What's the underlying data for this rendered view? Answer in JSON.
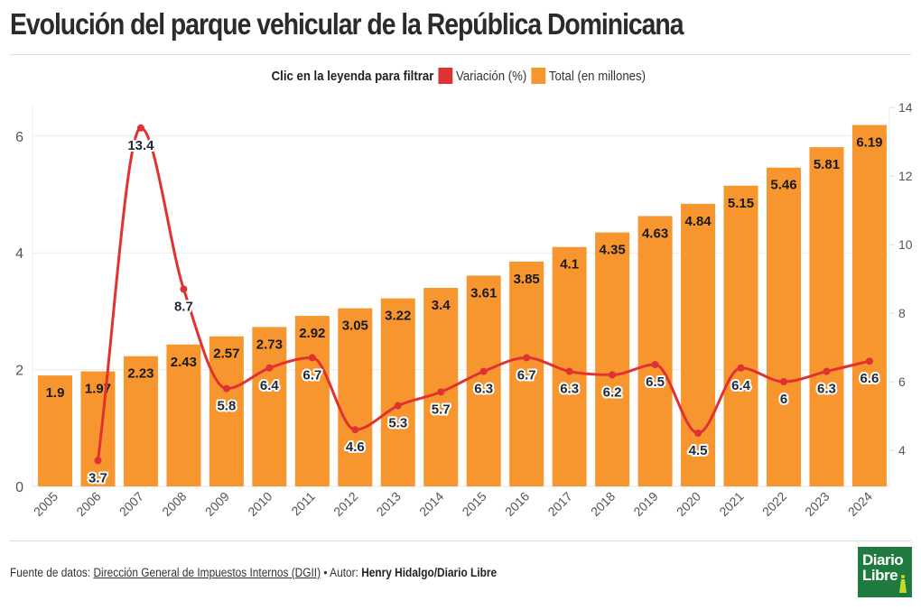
{
  "title": "Evolución del parque vehicular de la República Dominicana",
  "legend": {
    "hint": "Clic en la leyenda para filtrar",
    "items": [
      {
        "label": "Variación (%)",
        "color": "#e03232"
      },
      {
        "label": "Total (en millones)",
        "color": "#f7962e"
      }
    ]
  },
  "footer": {
    "source_prefix": "Fuente de datos:",
    "source_link": "Dirección General de Impuestos Internos (DGII)",
    "separator": "•",
    "author_prefix": "Autor:",
    "author": "Henry Hidalgo/Diario Libre"
  },
  "logo": {
    "line1": "Diario",
    "line2": "Libre"
  },
  "chart_data": {
    "type": "bar+line",
    "title": "Evolución del parque vehicular de la República Dominicana",
    "categories": [
      "2005",
      "2006",
      "2007",
      "2008",
      "2009",
      "2010",
      "2011",
      "2012",
      "2013",
      "2014",
      "2015",
      "2016",
      "2017",
      "2018",
      "2019",
      "2020",
      "2021",
      "2022",
      "2023",
      "2024"
    ],
    "series": [
      {
        "name": "Total (en millones)",
        "type": "bar",
        "axis": "left",
        "color": "#f7962e",
        "values": [
          1.9,
          1.97,
          2.23,
          2.43,
          2.57,
          2.73,
          2.92,
          3.05,
          3.22,
          3.4,
          3.61,
          3.85,
          4.1,
          4.35,
          4.63,
          4.84,
          5.15,
          5.46,
          5.81,
          6.19
        ]
      },
      {
        "name": "Variación (%)",
        "type": "line",
        "axis": "right",
        "color": "#e03232",
        "values": [
          null,
          3.7,
          13.4,
          8.7,
          5.8,
          6.4,
          6.7,
          4.6,
          5.3,
          5.7,
          6.3,
          6.7,
          6.3,
          6.2,
          6.5,
          4.5,
          6.4,
          6,
          6.3,
          6.6
        ]
      }
    ],
    "left_axis": {
      "ticks": [
        0,
        2,
        4,
        6
      ],
      "range": [
        0,
        6.5
      ]
    },
    "right_axis": {
      "ticks": [
        4,
        6,
        8,
        10,
        12,
        14
      ],
      "range": [
        2.95,
        14
      ]
    },
    "grid": true,
    "legend_position": "top"
  }
}
